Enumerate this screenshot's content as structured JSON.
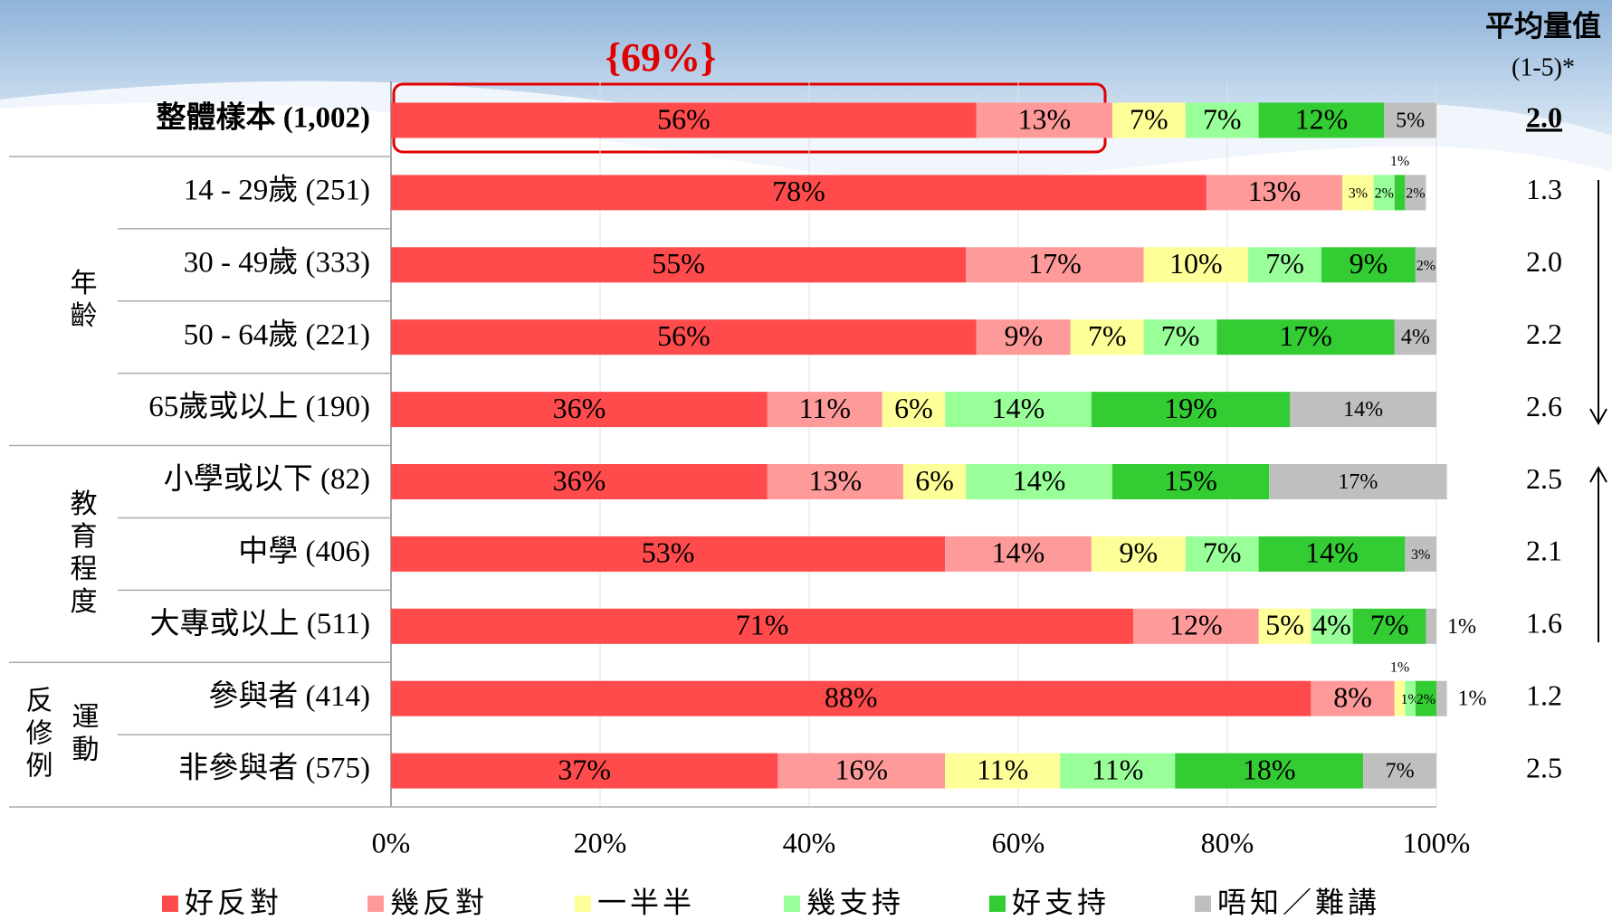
{
  "chart_data": {
    "type": "stacked_barh",
    "annotation": "{69%}",
    "mean_header": "平均量值",
    "mean_subheader": "(1-5)*",
    "categories": [
      "整體樣本 (1,002)",
      "14 - 29歲 (251)",
      "30 - 49歲 (333)",
      "50 - 64歲 (221)",
      "65歲或以上 (190)",
      "小學或以下 (82)",
      "中學 (406)",
      "大專或以上 (511)",
      "參與者 (414)",
      "非參與者 (575)"
    ],
    "groups": [
      {
        "lines": [
          "年齡"
        ]
      },
      {
        "lines": [
          "教育程度"
        ]
      },
      {
        "lines": [
          "反修例",
          "運動"
        ]
      }
    ],
    "mean_values": [
      "2.0",
      "1.3",
      "2.0",
      "2.2",
      "2.6",
      "2.5",
      "2.1",
      "1.6",
      "1.2",
      "2.5"
    ],
    "xlim": [
      0,
      100
    ],
    "xticks": [
      {
        "value": 0,
        "label": "0%"
      },
      {
        "value": 20,
        "label": "20%"
      },
      {
        "value": 40,
        "label": "40%"
      },
      {
        "value": 60,
        "label": "60%"
      },
      {
        "value": 80,
        "label": "80%"
      },
      {
        "value": 100,
        "label": "100%"
      }
    ],
    "series": [
      {
        "name": "好反對",
        "color": "#ff4b4b",
        "values": [
          56,
          78,
          55,
          56,
          36,
          36,
          53,
          71,
          88,
          37
        ],
        "value_labels": [
          "56%",
          "78%",
          "55%",
          "56%",
          "36%",
          "36%",
          "53%",
          "71%",
          "88%",
          "37%"
        ]
      },
      {
        "name": "幾反對",
        "color": "#ff9a9a",
        "values": [
          13,
          13,
          17,
          9,
          11,
          13,
          14,
          12,
          8,
          16
        ],
        "value_labels": [
          "13%",
          "13%",
          "17%",
          "9%",
          "11%",
          "13%",
          "14%",
          "12%",
          "8%",
          "16%"
        ]
      },
      {
        "name": "一半半",
        "color": "#ffff99",
        "values": [
          7,
          3,
          10,
          7,
          6,
          6,
          9,
          5,
          1,
          11
        ],
        "value_labels": [
          "7%",
          "3%",
          "10%",
          "7%",
          "6%",
          "6%",
          "9%",
          "5%",
          "1%",
          "11%"
        ]
      },
      {
        "name": "幾支持",
        "color": "#99ff99",
        "values": [
          7,
          2,
          7,
          7,
          14,
          14,
          7,
          4,
          1,
          11
        ],
        "value_labels": [
          "7%",
          "2%",
          "7%",
          "7%",
          "14%",
          "14%",
          "7%",
          "4%",
          "1%",
          "11%"
        ]
      },
      {
        "name": "好支持",
        "color": "#33cc33",
        "values": [
          12,
          1,
          9,
          17,
          19,
          15,
          14,
          7,
          2,
          18
        ],
        "value_labels": [
          "12%",
          "1%",
          "9%",
          "17%",
          "19%",
          "15%",
          "14%",
          "7%",
          "2%",
          "18%"
        ]
      },
      {
        "name": "唔知／難講",
        "color": "#bfbfbf",
        "values": [
          5,
          2,
          2,
          4,
          14,
          17,
          3,
          1,
          1,
          7
        ],
        "value_labels": [
          "5%",
          "2%",
          "2%",
          "4%",
          "14%",
          "17%",
          "3%",
          "1%",
          "1%",
          "7%"
        ]
      }
    ]
  }
}
